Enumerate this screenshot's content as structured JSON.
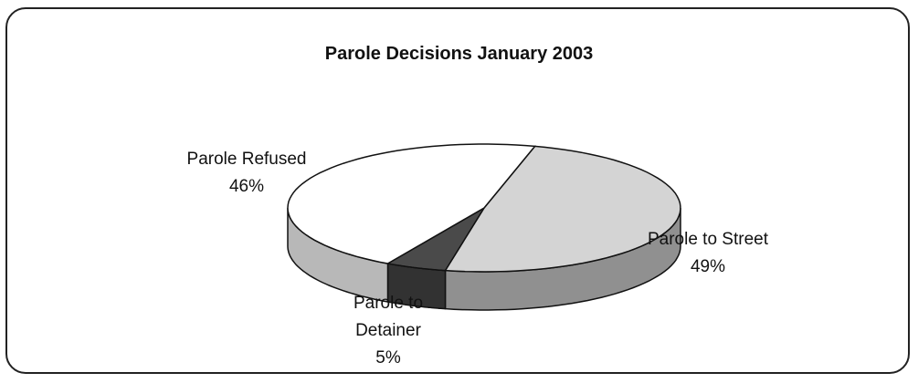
{
  "chart_data": {
    "type": "pie",
    "title": "Parole Decisions January 2003",
    "categories": [
      "Parole to Street",
      "Parole to Detainer",
      "Parole Refused"
    ],
    "values": [
      49,
      5,
      46
    ],
    "value_labels": [
      "49%",
      "5%",
      "46%"
    ],
    "colors": [
      "#d4d4d4",
      "#4a4a4a",
      "#ffffff"
    ]
  }
}
